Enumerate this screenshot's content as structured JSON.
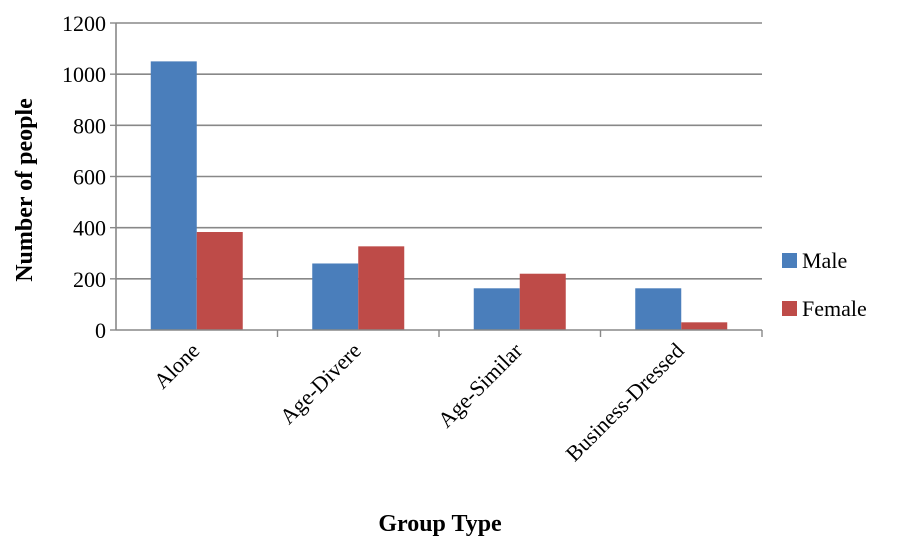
{
  "chart_data": {
    "type": "bar",
    "title": "",
    "xlabel": "Group Type",
    "ylabel": "Number of  people",
    "categories": [
      "Alone",
      "Age-Divere",
      "Age-Similar",
      "Business-Dressed"
    ],
    "series": [
      {
        "name": "Male",
        "values": [
          1050,
          260,
          163,
          163
        ],
        "color": "#4a7ebb"
      },
      {
        "name": "Female",
        "values": [
          383,
          327,
          220,
          30
        ],
        "color": "#be4b48"
      }
    ],
    "ylim": [
      0,
      1200
    ],
    "yticks": [
      "0",
      "200",
      "400",
      "600",
      "800",
      "1000",
      "1200"
    ],
    "grid": true,
    "legend_position": "right"
  }
}
